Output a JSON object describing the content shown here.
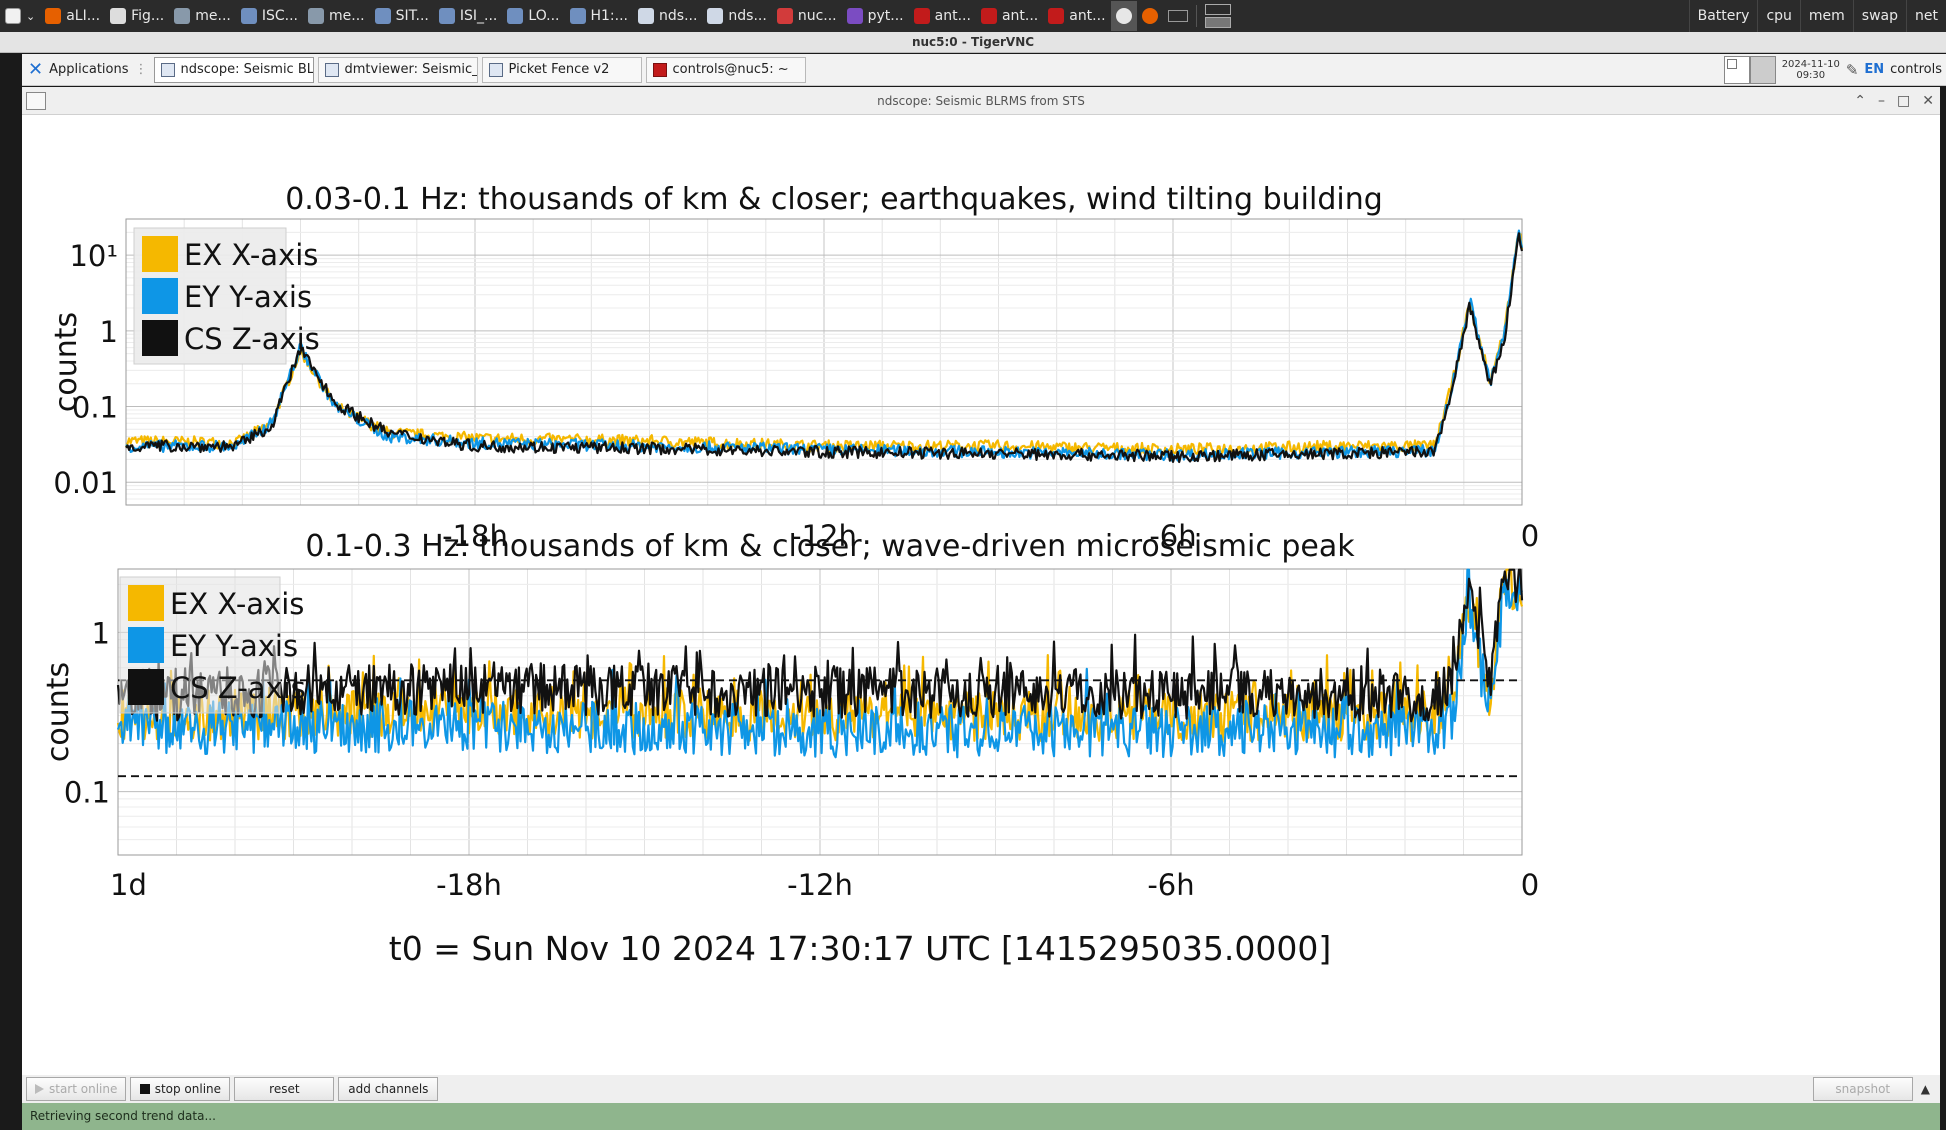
{
  "taskbar": {
    "items": [
      {
        "label": "aLI...",
        "icon": "firefox-icon",
        "color": "#e66000"
      },
      {
        "label": "Fig...",
        "icon": "figure-icon",
        "color": "#dddddd"
      },
      {
        "label": "me...",
        "icon": "window-icon",
        "color": "#8899aa"
      },
      {
        "label": "ISC...",
        "icon": "window-icon",
        "color": "#6f8fbf"
      },
      {
        "label": "me...",
        "icon": "window-icon",
        "color": "#8899aa"
      },
      {
        "label": "SIT...",
        "icon": "window-icon",
        "color": "#6f8fbf"
      },
      {
        "label": "ISI_...",
        "icon": "window-icon",
        "color": "#6f8fbf"
      },
      {
        "label": "LO...",
        "icon": "window-icon",
        "color": "#6f8fbf"
      },
      {
        "label": "H1:...",
        "icon": "window-icon",
        "color": "#6f8fbf"
      },
      {
        "label": "nds...",
        "icon": "window-icon",
        "color": "#cfd8e6"
      },
      {
        "label": "nds...",
        "icon": "window-icon",
        "color": "#cfd8e6"
      },
      {
        "label": "nuc...",
        "icon": "vnc-icon",
        "color": "#d23b3b"
      },
      {
        "label": "pyt...",
        "icon": "terminal-x-icon",
        "color": "#7b4cc2"
      },
      {
        "label": "ant...",
        "icon": "terminal-icon",
        "color": "#c21b1b"
      },
      {
        "label": "ant...",
        "icon": "terminal-icon",
        "color": "#c21b1b"
      },
      {
        "label": "ant...",
        "icon": "terminal-icon",
        "color": "#c21b1b"
      }
    ],
    "stats": [
      "Battery",
      "cpu",
      "mem",
      "swap",
      "net"
    ]
  },
  "vnc_title": "nuc5:0 - TigerVNC",
  "panel": {
    "apps_label": "Applications",
    "tasks": [
      {
        "label": "ndscope: Seismic BLRMS f..."
      },
      {
        "label": "dmtviewer: Seismic_FOM_..."
      },
      {
        "label": "Picket Fence v2"
      },
      {
        "label": "controls@nuc5: ~"
      }
    ],
    "date": "2024-11-10",
    "time": "09:30",
    "lang": "EN",
    "user": "controls"
  },
  "ndscope": {
    "title": "ndscope: Seismic BLRMS from STS",
    "buttons": {
      "start": "start online",
      "stop": "stop online",
      "reset": "reset",
      "add": "add channels",
      "snapshot": "snapshot"
    },
    "status": "Retrieving second trend data...",
    "t0_label": "t0 = Sun Nov 10 2024 17:30:17 UTC [1415295035.0000]"
  },
  "colors": {
    "ex": "#f5b800",
    "ey": "#0e96e6",
    "cs": "#111111"
  },
  "chart_data": [
    {
      "type": "line",
      "title": "0.03-0.1 Hz: thousands of km & closer; earthquakes, wind tilting building",
      "ylabel": "counts",
      "yscale": "log",
      "ylim": [
        0.005,
        30
      ],
      "yticks": [
        {
          "v": 0.01,
          "label": "0.01"
        },
        {
          "v": 0.1,
          "label": "0.1"
        },
        {
          "v": 1,
          "label": "1"
        },
        {
          "v": 10,
          "label": "10¹"
        }
      ],
      "xlim_hours": [
        -24,
        0
      ],
      "xticks": [
        {
          "v": -18,
          "label": "-18h"
        },
        {
          "v": -12,
          "label": "-12h"
        },
        {
          "v": -6,
          "label": "-6h"
        },
        {
          "v": 0,
          "label": "0"
        }
      ],
      "grid": true,
      "legend": "top-left",
      "series": [
        {
          "name": "EX X-axis",
          "color": "#f5b800",
          "x_hours": [
            -24,
            -22.1,
            -21.5,
            -21.0,
            -20.4,
            -19.5,
            -18,
            -15,
            -12,
            -9,
            -6,
            -3,
            -1.5,
            -1.2,
            -0.9,
            -0.55,
            -0.3,
            -0.05,
            0
          ],
          "values": [
            0.035,
            0.033,
            0.06,
            0.55,
            0.1,
            0.045,
            0.038,
            0.035,
            0.03,
            0.03,
            0.027,
            0.03,
            0.03,
            0.2,
            2.3,
            0.22,
            1.0,
            22,
            12
          ]
        },
        {
          "name": "EY Y-axis",
          "color": "#0e96e6",
          "x_hours": [
            -24,
            -22.1,
            -21.5,
            -21.0,
            -20.4,
            -19.5,
            -18,
            -15,
            -12,
            -9,
            -6,
            -3,
            -1.5,
            -1.2,
            -0.9,
            -0.55,
            -0.3,
            -0.05,
            0
          ],
          "values": [
            0.03,
            0.03,
            0.06,
            0.6,
            0.1,
            0.04,
            0.033,
            0.03,
            0.027,
            0.025,
            0.023,
            0.025,
            0.026,
            0.18,
            2.6,
            0.2,
            0.9,
            24,
            11
          ]
        },
        {
          "name": "CS Z-axis",
          "color": "#111111",
          "x_hours": [
            -24,
            -22.1,
            -21.5,
            -21.0,
            -20.4,
            -19.5,
            -18,
            -15,
            -12,
            -9,
            -6,
            -3,
            -1.5,
            -1.2,
            -0.9,
            -0.55,
            -0.3,
            -0.05,
            0
          ],
          "values": [
            0.03,
            0.03,
            0.055,
            0.58,
            0.11,
            0.045,
            0.03,
            0.028,
            0.025,
            0.024,
            0.022,
            0.024,
            0.025,
            0.17,
            2.2,
            0.18,
            0.8,
            20,
            10
          ]
        }
      ]
    },
    {
      "type": "line",
      "title": "0.1-0.3 Hz: thousands of km & closer; wave-driven microseismic peak",
      "ylabel": "counts",
      "yscale": "log",
      "ylim": [
        0.04,
        2.5
      ],
      "yticks": [
        {
          "v": 0.1,
          "label": "0.1"
        },
        {
          "v": 1,
          "label": "1"
        }
      ],
      "xlim_hours": [
        -24,
        0
      ],
      "xticks": [
        {
          "v": -24,
          "label": "1d"
        },
        {
          "v": -18,
          "label": "-18h"
        },
        {
          "v": -12,
          "label": "-12h"
        },
        {
          "v": -6,
          "label": "-6h"
        },
        {
          "v": 0,
          "label": "0"
        }
      ],
      "hlines": [
        0.5,
        0.125
      ],
      "grid": true,
      "legend": "top-left",
      "series": [
        {
          "name": "EX X-axis",
          "color": "#f5b800",
          "x_hours": [
            -24,
            -18,
            -12,
            -6,
            -1.5,
            -1.2,
            -0.9,
            -0.55,
            -0.3,
            0
          ],
          "values": [
            0.3,
            0.32,
            0.3,
            0.3,
            0.3,
            0.4,
            1.5,
            0.35,
            2.2,
            1.8
          ]
        },
        {
          "name": "EY Y-axis",
          "color": "#0e96e6",
          "x_hours": [
            -24,
            -18,
            -12,
            -6,
            -1.5,
            -1.2,
            -0.9,
            -0.55,
            -0.3,
            0
          ],
          "values": [
            0.25,
            0.26,
            0.24,
            0.24,
            0.24,
            0.3,
            1.4,
            0.3,
            2.0,
            1.6
          ]
        },
        {
          "name": "CS Z-axis",
          "color": "#111111",
          "x_hours": [
            -24,
            -18,
            -12,
            -6,
            -1.5,
            -1.2,
            -0.9,
            -0.55,
            -0.3,
            0
          ],
          "values": [
            0.4,
            0.45,
            0.42,
            0.42,
            0.4,
            0.5,
            2.3,
            0.45,
            2.4,
            2.0
          ]
        }
      ]
    }
  ]
}
